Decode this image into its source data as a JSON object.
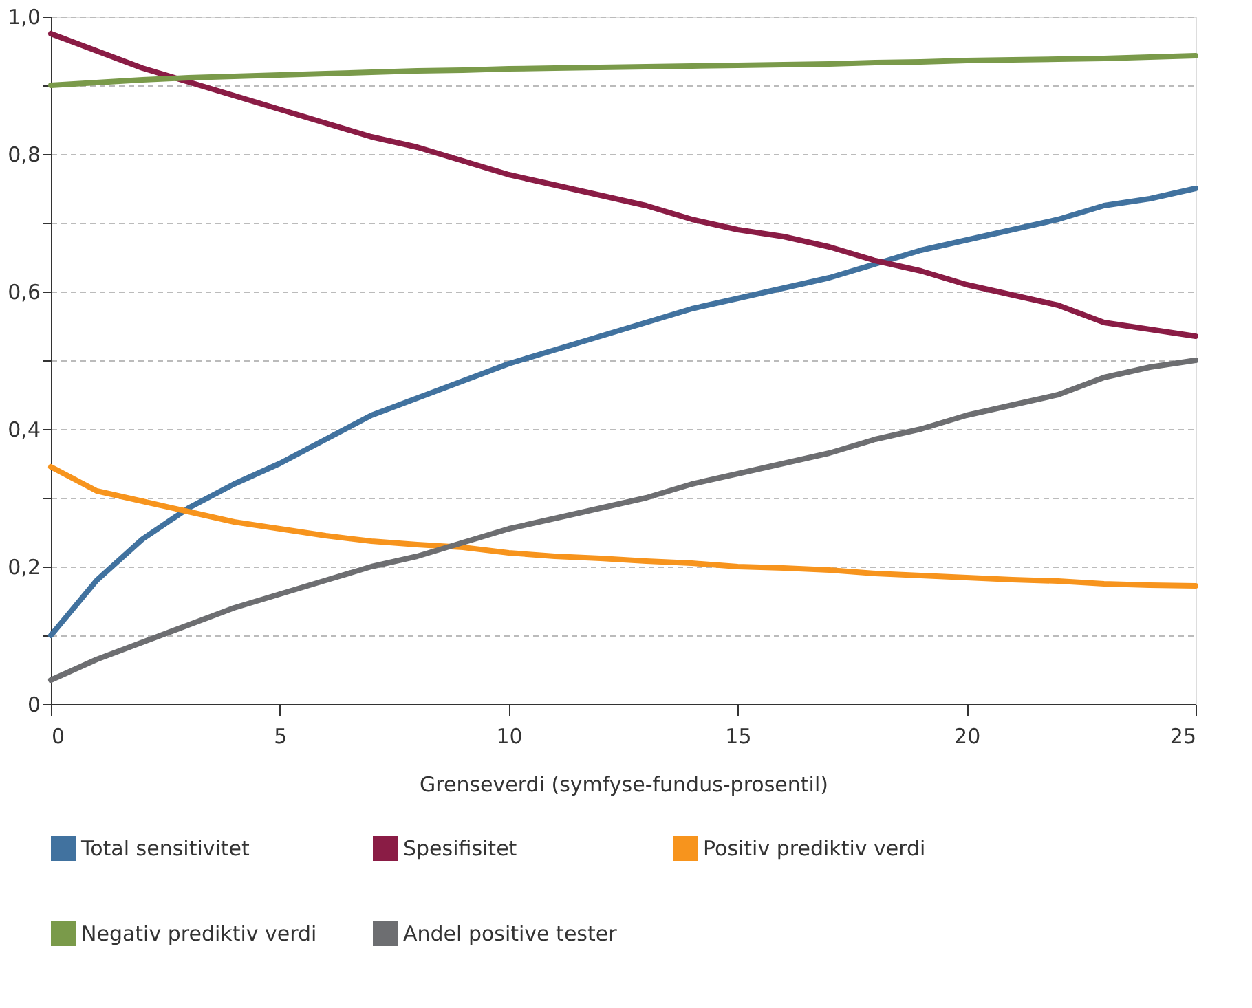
{
  "chart_data": {
    "type": "line",
    "xlabel": "Grenseverdi (symfyse-fundus-prosentil)",
    "x": [
      0,
      1,
      2,
      3,
      4,
      5,
      6,
      7,
      8,
      9,
      10,
      11,
      12,
      13,
      14,
      15,
      16,
      17,
      18,
      19,
      20,
      21,
      22,
      23,
      24,
      25
    ],
    "series": [
      {
        "name": "Total sensitivitet",
        "color": "#41729f",
        "values": [
          0.1,
          0.18,
          0.24,
          0.285,
          0.32,
          0.35,
          0.385,
          0.42,
          0.445,
          0.47,
          0.495,
          0.515,
          0.535,
          0.555,
          0.575,
          0.59,
          0.605,
          0.62,
          0.64,
          0.66,
          0.675,
          0.69,
          0.705,
          0.725,
          0.735,
          0.75
        ]
      },
      {
        "name": "Spesifisitet",
        "color": "#8a1c45",
        "values": [
          0.975,
          0.95,
          0.925,
          0.905,
          0.885,
          0.865,
          0.845,
          0.825,
          0.81,
          0.79,
          0.77,
          0.755,
          0.74,
          0.725,
          0.705,
          0.69,
          0.68,
          0.665,
          0.645,
          0.63,
          0.61,
          0.595,
          0.58,
          0.555,
          0.545,
          0.535
        ]
      },
      {
        "name": "Positiv prediktiv verdi",
        "color": "#f7941d",
        "values": [
          0.345,
          0.31,
          0.295,
          0.28,
          0.265,
          0.255,
          0.245,
          0.237,
          0.232,
          0.228,
          0.22,
          0.215,
          0.212,
          0.208,
          0.205,
          0.2,
          0.198,
          0.195,
          0.19,
          0.187,
          0.184,
          0.181,
          0.179,
          0.175,
          0.173,
          0.172
        ]
      },
      {
        "name": "Negativ prediktiv verdi",
        "color": "#7a9a4a",
        "values": [
          0.9,
          0.904,
          0.908,
          0.911,
          0.913,
          0.915,
          0.917,
          0.919,
          0.921,
          0.922,
          0.924,
          0.925,
          0.926,
          0.927,
          0.928,
          0.929,
          0.93,
          0.931,
          0.933,
          0.934,
          0.936,
          0.937,
          0.938,
          0.939,
          0.941,
          0.943
        ]
      },
      {
        "name": "Andel positive tester",
        "color": "#6d6e71",
        "values": [
          0.035,
          0.065,
          0.09,
          0.115,
          0.14,
          0.16,
          0.18,
          0.2,
          0.215,
          0.235,
          0.255,
          0.27,
          0.285,
          0.3,
          0.32,
          0.335,
          0.35,
          0.365,
          0.385,
          0.4,
          0.42,
          0.435,
          0.45,
          0.475,
          0.49,
          0.5
        ]
      }
    ],
    "xlim": [
      0,
      25
    ],
    "xticks": [
      0,
      5,
      10,
      15,
      20,
      25
    ],
    "ylim": [
      0,
      1
    ],
    "yticks": [
      0,
      {
        "value": 0.1,
        "label": null
      },
      {
        "value": 0.2,
        "label": "0,2"
      },
      {
        "value": 0.3,
        "label": null
      },
      {
        "value": 0.4,
        "label": "0,4"
      },
      {
        "value": 0.5,
        "label": null
      },
      {
        "value": 0.6,
        "label": "0,6"
      },
      {
        "value": 0.7,
        "label": null
      },
      {
        "value": 0.8,
        "label": "0,8"
      },
      {
        "value": 0.9,
        "label": null
      },
      {
        "value": 1.0,
        "label": "1,0"
      }
    ],
    "grid": "y",
    "legend": "bottom",
    "marker": "none",
    "line_style": "solid"
  }
}
